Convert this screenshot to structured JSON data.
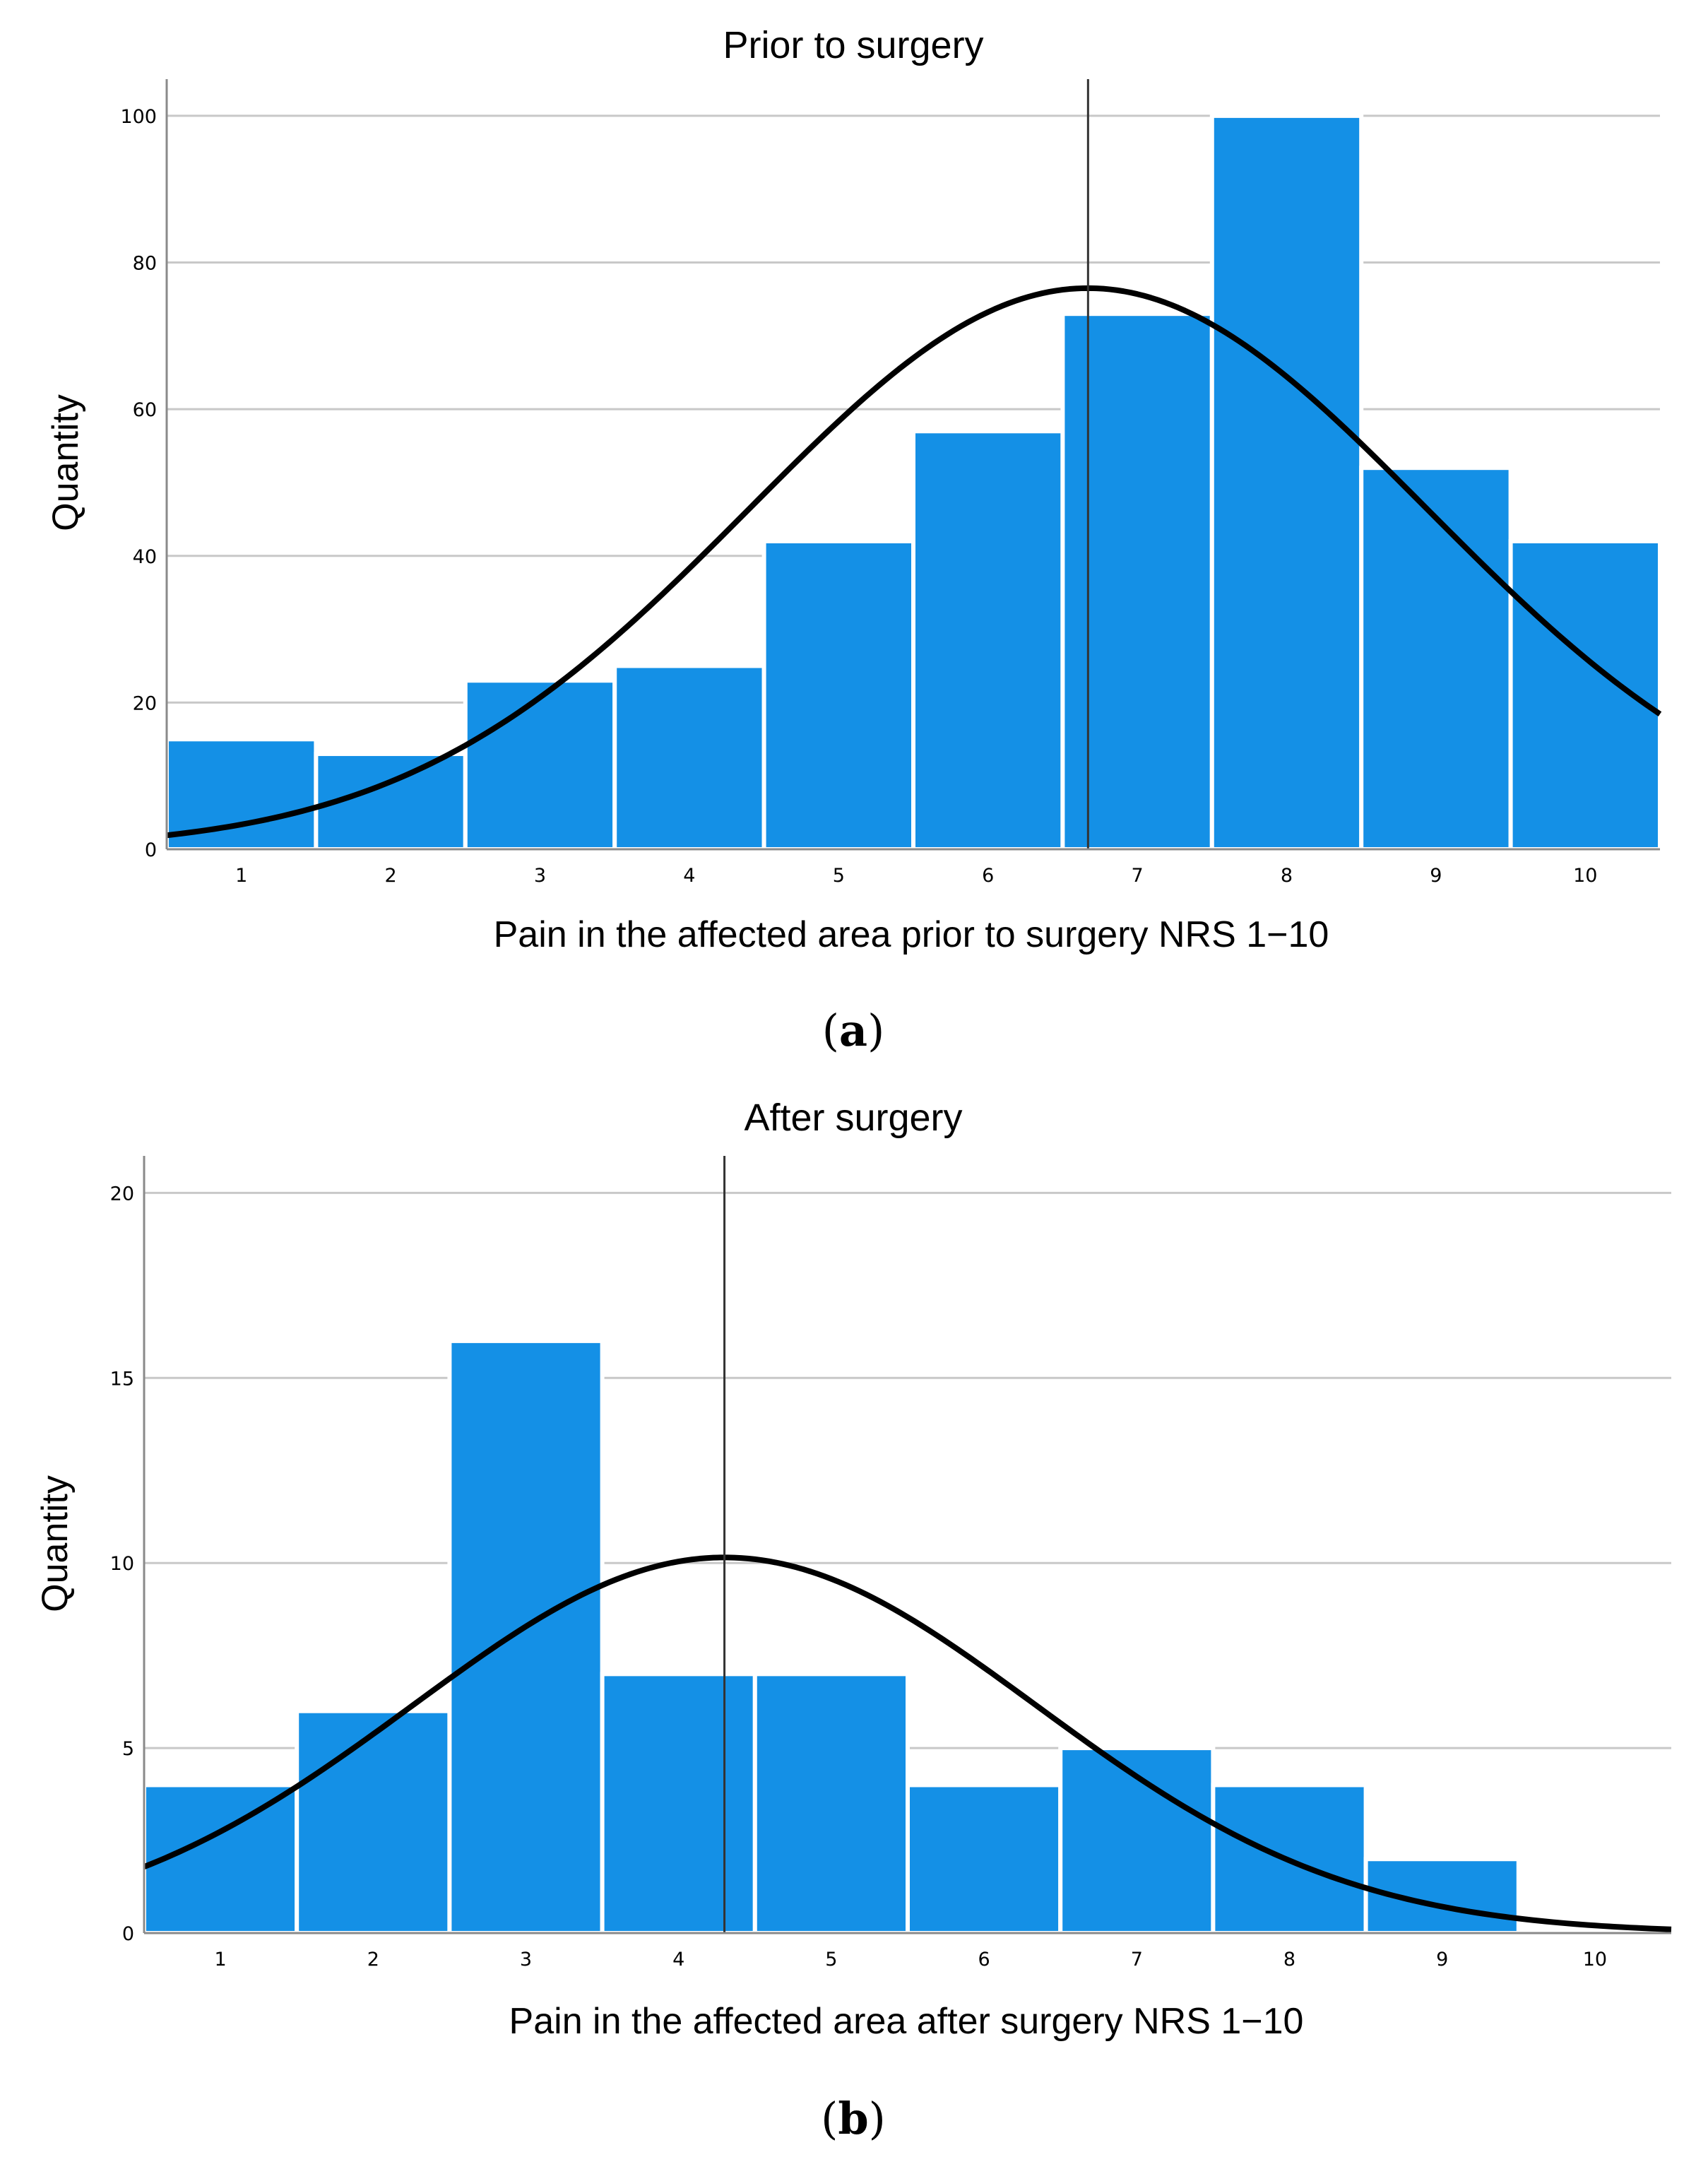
{
  "colors": {
    "bar": "#1490e6",
    "curve": "#000000",
    "mean_line": "#333333",
    "grid": "#c8c8c8"
  },
  "chart_data": [
    {
      "type": "bar",
      "histogram": true,
      "title": "Prior to surgery",
      "xlabel": "Pain in the affected area prior to surgery NRS 1−10",
      "ylabel": "Quantity",
      "categories": [
        "1",
        "2",
        "3",
        "4",
        "5",
        "6",
        "7",
        "8",
        "9",
        "10"
      ],
      "values": [
        15,
        13,
        23,
        25,
        42,
        57,
        73,
        100,
        52,
        42
      ],
      "yticks": [
        0,
        20,
        40,
        60,
        80,
        100
      ],
      "ylim": [
        0,
        105
      ],
      "xlim": [
        0.5,
        10.5
      ],
      "grid": true,
      "mean_line": 6.67,
      "normal_curve": {
        "mean": 6.67,
        "peak": 76.5,
        "sd": 2.27
      },
      "panel_label": "a"
    },
    {
      "type": "bar",
      "histogram": true,
      "title": "After surgery",
      "xlabel": "Pain in the affected area after surgery NRS 1−10",
      "ylabel": "Quantity",
      "categories": [
        "1",
        "2",
        "3",
        "4",
        "5",
        "6",
        "7",
        "8",
        "9",
        "10"
      ],
      "values": [
        4,
        6,
        16,
        7,
        7,
        4,
        5,
        4,
        2,
        0
      ],
      "yticks": [
        0,
        5,
        10,
        15,
        20
      ],
      "ylim": [
        0,
        21
      ],
      "xlim": [
        0.5,
        10.5
      ],
      "grid": true,
      "mean_line": 4.3,
      "normal_curve": {
        "mean": 4.3,
        "peak": 10.15,
        "sd": 2.04
      },
      "panel_label": "b"
    }
  ]
}
